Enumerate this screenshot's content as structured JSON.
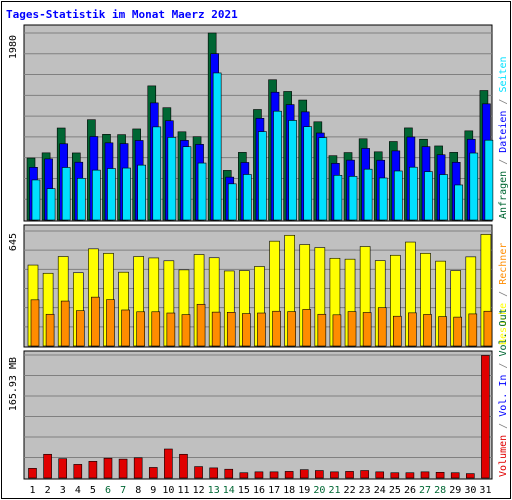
{
  "title": "Tages-Statistik im Monat Maerz 2021",
  "colors": {
    "title": "#0000ff",
    "background": "#c0c0c0",
    "grid": "#808080",
    "anfragen": "#006633",
    "dateien": "#0000ff",
    "seiten": "#00e0ff",
    "besuche": "#ffff00",
    "rechner": "#ff8c00",
    "volumen": "#e00000",
    "weekend_label": "#006633",
    "weekday_label": "#000000"
  },
  "chart_data": [
    {
      "type": "bar",
      "panel": "top",
      "y_max_label": "1980",
      "ylim": [
        0,
        1980
      ],
      "x": [
        1,
        2,
        3,
        4,
        5,
        6,
        7,
        8,
        9,
        10,
        11,
        12,
        13,
        14,
        15,
        16,
        17,
        18,
        19,
        20,
        21,
        22,
        23,
        24,
        25,
        26,
        27,
        28,
        29,
        30,
        31
      ],
      "legend": [
        "Anfragen",
        "/",
        "Dateien",
        "/",
        "Seiten"
      ],
      "series": [
        {
          "name": "Anfragen",
          "color": "#006633",
          "values": [
            656,
            711,
            974,
            710,
            1062,
            907,
            904,
            964,
            1420,
            1189,
            934,
            882,
            1980,
            525,
            716,
            1170,
            1485,
            1361,
            1270,
            1040,
            681,
            714,
            860,
            722,
            831,
            975,
            855,
            784,
            716,
            944,
            1371
          ]
        },
        {
          "name": "Dateien",
          "color": "#0000ff",
          "values": [
            558,
            647,
            807,
            612,
            884,
            817,
            809,
            842,
            1240,
            1051,
            843,
            801,
            1761,
            454,
            609,
            1077,
            1353,
            1222,
            1145,
            921,
            600,
            634,
            758,
            633,
            732,
            879,
            777,
            691,
            611,
            855,
            1230
          ]
        },
        {
          "name": "Seiten",
          "color": "#00e0ff",
          "values": [
            424,
            332,
            556,
            441,
            528,
            545,
            550,
            581,
            986,
            875,
            776,
            603,
            1557,
            383,
            482,
            936,
            1152,
            1054,
            988,
            872,
            473,
            462,
            538,
            445,
            519,
            559,
            512,
            481,
            371,
            709,
            845
          ]
        }
      ]
    },
    {
      "type": "bar",
      "panel": "middle",
      "y_max_label": "645",
      "ylim": [
        0,
        645
      ],
      "x": [
        1,
        2,
        3,
        4,
        5,
        6,
        7,
        8,
        9,
        10,
        11,
        12,
        13,
        14,
        15,
        16,
        17,
        18,
        19,
        20,
        21,
        22,
        23,
        24,
        25,
        26,
        27,
        28,
        29,
        30,
        31
      ],
      "legend": [
        "Besuche",
        "/",
        "Rechner"
      ],
      "series": [
        {
          "name": "Besuche",
          "color": "#ffff00",
          "values": [
            454,
            408,
            502,
            411,
            545,
            520,
            414,
            502,
            494,
            478,
            427,
            513,
            495,
            421,
            423,
            446,
            588,
            621,
            569,
            552,
            492,
            487,
            558,
            479,
            509,
            583,
            520,
            476,
            423,
            500,
            626
          ]
        },
        {
          "name": "Rechner",
          "color": "#ff8c00",
          "values": [
            259,
            178,
            252,
            198,
            274,
            260,
            202,
            192,
            192,
            185,
            176,
            234,
            190,
            189,
            182,
            185,
            195,
            193,
            205,
            178,
            175,
            193,
            188,
            215,
            167,
            186,
            177,
            165,
            162,
            180,
            195
          ]
        }
      ]
    },
    {
      "type": "bar",
      "panel": "bottom",
      "y_max_label": "165.93 MB",
      "ylim": [
        0,
        280
      ],
      "x": [
        1,
        2,
        3,
        4,
        5,
        6,
        7,
        8,
        9,
        10,
        11,
        12,
        13,
        14,
        15,
        16,
        17,
        18,
        19,
        20,
        21,
        22,
        23,
        24,
        25,
        26,
        27,
        28,
        29,
        30,
        31
      ],
      "legend": [
        "Volumen",
        "/",
        "Vol. In",
        "/",
        "Vol. Out"
      ],
      "series": [
        {
          "name": "Volumen",
          "color": "#e00000",
          "values": [
            22,
            54,
            44,
            31,
            38,
            45,
            43,
            46,
            24,
            66,
            54,
            26,
            23,
            20,
            12,
            14,
            14,
            15,
            19,
            17,
            14,
            15,
            17,
            14,
            12,
            12,
            14,
            13,
            12,
            10,
            279
          ]
        }
      ]
    }
  ],
  "x_labels": [
    "1",
    "2",
    "3",
    "4",
    "5",
    "6",
    "7",
    "8",
    "9",
    "10",
    "11",
    "12",
    "13",
    "14",
    "15",
    "16",
    "17",
    "18",
    "19",
    "20",
    "21",
    "22",
    "23",
    "24",
    "25",
    "26",
    "27",
    "28",
    "29",
    "30",
    "31"
  ],
  "weekend_days": [
    6,
    7,
    13,
    14,
    20,
    21,
    27,
    28
  ]
}
